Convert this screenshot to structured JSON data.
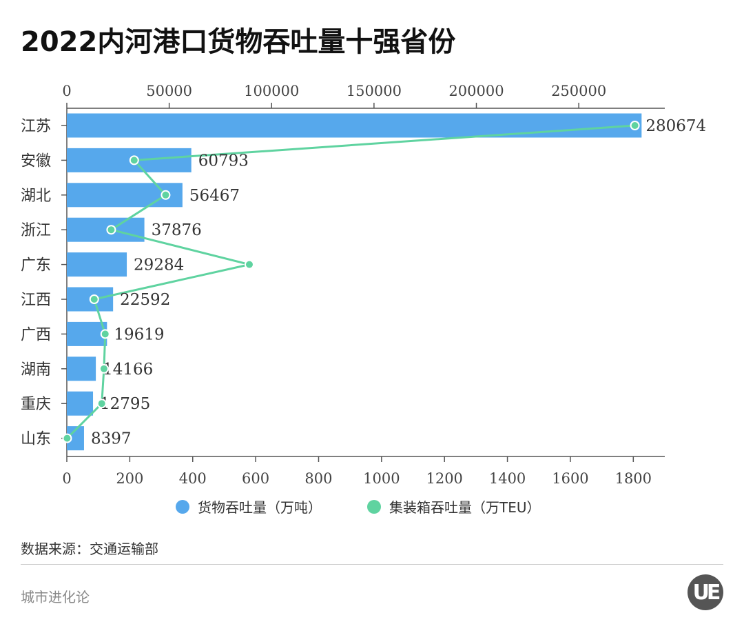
{
  "title": "2022内河港口货物吞吐量十强省份",
  "source": "数据来源：交通运输部",
  "brand": "城市进化论",
  "logo_text": "UE",
  "chart_data": {
    "type": "bar+line",
    "title": "2022内河港口货物吞吐量十强省份",
    "categories": [
      "江苏",
      "安徽",
      "湖北",
      "浙江",
      "广东",
      "江西",
      "广西",
      "湖南",
      "重庆",
      "山东"
    ],
    "series": [
      {
        "name": "货物吞吐量（万吨）",
        "type": "bar",
        "axis": "top",
        "color": "#56a8ec",
        "values": [
          280674,
          60793,
          56467,
          37876,
          29284,
          22592,
          19619,
          14166,
          12795,
          8397
        ],
        "data_labels": true
      },
      {
        "name": "集装箱吞吐量（万TEU）",
        "type": "line",
        "axis": "bottom",
        "color": "#5fd3a0",
        "values": [
          1805,
          214,
          314,
          141,
          580,
          87,
          122,
          118,
          111,
          1
        ]
      }
    ],
    "top_axis": {
      "range": [
        0,
        292000
      ],
      "ticks": [
        "0",
        "50000",
        "100000",
        "150000",
        "200000",
        "250000"
      ],
      "tick_values": [
        0,
        50000,
        100000,
        150000,
        200000,
        250000
      ]
    },
    "bottom_axis": {
      "range": [
        0,
        1900
      ],
      "ticks": [
        "0",
        "200",
        "400",
        "600",
        "800",
        "1000",
        "1200",
        "1400",
        "1600",
        "1800"
      ],
      "tick_values": [
        0,
        200,
        400,
        600,
        800,
        1000,
        1200,
        1400,
        1600,
        1800
      ]
    },
    "legend_position": "bottom",
    "grid": false
  }
}
